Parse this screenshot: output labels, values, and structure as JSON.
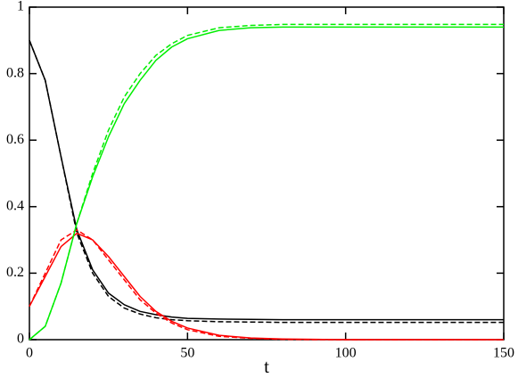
{
  "chart_data": {
    "type": "line",
    "x": [
      0,
      5,
      10,
      15,
      20,
      25,
      30,
      35,
      40,
      45,
      50,
      60,
      70,
      80,
      90,
      100,
      110,
      120,
      130,
      140,
      150
    ],
    "series": [
      {
        "color": "#000000",
        "linestyle": "solid",
        "values": [
          0.9,
          0.78,
          0.55,
          0.33,
          0.21,
          0.14,
          0.105,
          0.085,
          0.075,
          0.068,
          0.064,
          0.062,
          0.061,
          0.06,
          0.06,
          0.06,
          0.06,
          0.06,
          0.06,
          0.06,
          0.06
        ]
      },
      {
        "color": "#000000",
        "linestyle": "dashed",
        "values": [
          0.9,
          0.78,
          0.55,
          0.32,
          0.2,
          0.13,
          0.095,
          0.077,
          0.066,
          0.06,
          0.057,
          0.054,
          0.053,
          0.052,
          0.052,
          0.052,
          0.052,
          0.052,
          0.052,
          0.052,
          0.052
        ]
      },
      {
        "color": "#ff0000",
        "linestyle": "solid",
        "values": [
          0.1,
          0.19,
          0.28,
          0.32,
          0.3,
          0.25,
          0.19,
          0.13,
          0.085,
          0.055,
          0.035,
          0.013,
          0.005,
          0.002,
          0.001,
          0,
          0,
          0,
          0,
          0,
          0
        ]
      },
      {
        "color": "#ff0000",
        "linestyle": "dashed",
        "values": [
          0.1,
          0.2,
          0.3,
          0.33,
          0.3,
          0.24,
          0.18,
          0.12,
          0.08,
          0.05,
          0.03,
          0.01,
          0.004,
          0.001,
          0,
          0,
          0,
          0,
          0,
          0,
          0
        ]
      },
      {
        "color": "#00ee00",
        "linestyle": "solid",
        "values": [
          0,
          0.04,
          0.17,
          0.35,
          0.49,
          0.61,
          0.71,
          0.78,
          0.84,
          0.88,
          0.905,
          0.93,
          0.938,
          0.94,
          0.94,
          0.94,
          0.94,
          0.94,
          0.94,
          0.94,
          0.94
        ]
      },
      {
        "color": "#00ee00",
        "linestyle": "dashed",
        "values": [
          0,
          0.04,
          0.17,
          0.35,
          0.5,
          0.63,
          0.73,
          0.8,
          0.855,
          0.89,
          0.915,
          0.938,
          0.945,
          0.948,
          0.948,
          0.948,
          0.948,
          0.948,
          0.948,
          0.948,
          0.948
        ]
      }
    ],
    "xlabel": "t",
    "xlim": [
      0,
      150
    ],
    "xticks": [
      0,
      50,
      100,
      150
    ],
    "ylim": [
      0,
      1
    ],
    "yticks": [
      0,
      0.2,
      0.4,
      0.6,
      0.8,
      1
    ]
  }
}
